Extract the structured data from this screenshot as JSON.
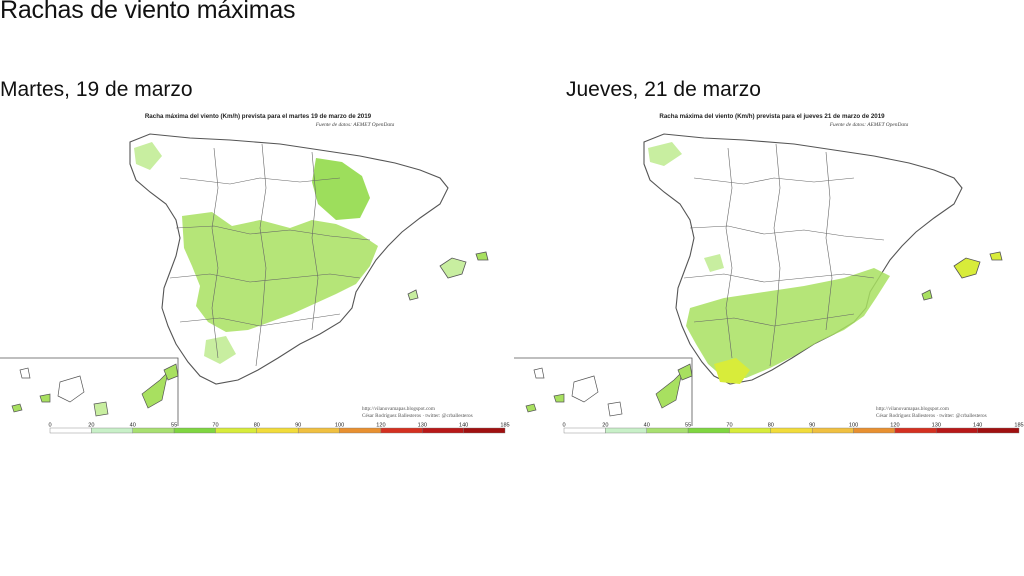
{
  "page": {
    "title": "Rachas de viento máximas"
  },
  "maps": [
    {
      "heading": "Martes, 19 de marzo",
      "map_title": "Racha máxima del viento (Km/h) prevista para el martes 19 de marzo de 2019",
      "source": "Fuente de datos: AEMET OpenData",
      "credit_url": "http://vilanovamapas.blogspot.com",
      "credit_author": "César Rodríguez Ballesteros · twitter: @crballesteros"
    },
    {
      "heading": "Jueves, 21 de marzo",
      "map_title": "Racha máxima del viento (Km/h) prevista para el jueves 21 de marzo de 2019",
      "source": "Fuente de datos: AEMET OpenData",
      "credit_url": "http://vilanovamapas.blogspot.com",
      "credit_author": "César Rodríguez Ballesteros · twitter: @crballesteros"
    }
  ],
  "legend": {
    "unit": "Km/h",
    "ticks": [
      "0",
      "20",
      "40",
      "55",
      "70",
      "80",
      "90",
      "100",
      "120",
      "130",
      "140",
      "185"
    ],
    "colors": [
      "#ffffff",
      "#c8f0c8",
      "#a8e070",
      "#7fd640",
      "#d8ec3a",
      "#f2dc3a",
      "#f0c040",
      "#e89030",
      "#d43020",
      "#b81818",
      "#a01010"
    ]
  },
  "colors": {
    "land": "#ffffff",
    "border": "#555555",
    "wind_light": "#d4f0b0",
    "wind_mid": "#a8e060",
    "wind_strong": "#8cd840"
  }
}
